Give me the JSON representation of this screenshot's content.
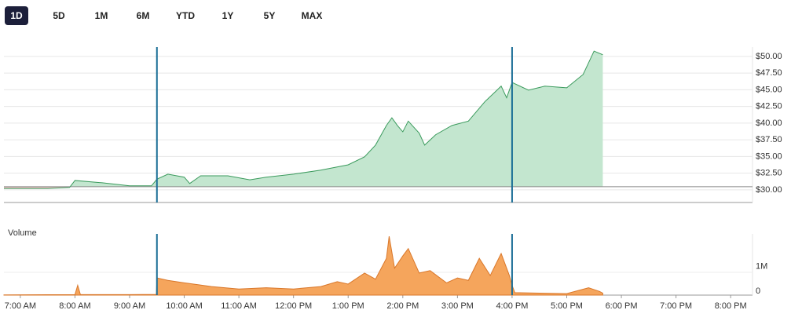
{
  "range_buttons": [
    "1D",
    "5D",
    "1M",
    "6M",
    "YTD",
    "1Y",
    "5Y",
    "MAX"
  ],
  "selected": "1D",
  "chart_data": [
    {
      "type": "area",
      "previous_close": 30.47,
      "session_markers": [
        9.5,
        16
      ],
      "xlim": [
        6.7,
        20.4
      ],
      "ylim": [
        28.1,
        51.4
      ],
      "grid": true,
      "yticks": [
        {
          "value": 30,
          "label": "$30.00"
        },
        {
          "value": 32.5,
          "label": "$32.50"
        },
        {
          "value": 35,
          "label": "$35.00"
        },
        {
          "value": 37.5,
          "label": "$37.50"
        },
        {
          "value": 40,
          "label": "$40.00"
        },
        {
          "value": 42.5,
          "label": "$42.50"
        },
        {
          "value": 45,
          "label": "$45.00"
        },
        {
          "value": 47.5,
          "label": "$47.50"
        },
        {
          "value": 50,
          "label": "$50.00"
        }
      ],
      "series": [
        {
          "color": "#3a9a5c",
          "x": [
            6.7,
            7.5,
            7.9,
            8.0,
            8.5,
            9.0,
            9.4,
            9.5,
            9.7,
            10.0,
            10.1,
            10.3,
            10.8,
            11.2,
            11.5,
            12.0,
            12.5,
            13.0,
            13.3,
            13.5,
            13.7,
            13.8,
            13.9,
            14.0,
            14.1,
            14.3,
            14.4,
            14.6,
            14.9,
            15.2,
            15.5,
            15.8,
            15.9,
            16.0,
            16.3,
            16.6,
            17.0,
            17.3,
            17.5,
            17.66
          ],
          "values": [
            30.2,
            30.2,
            30.35,
            31.4,
            31.05,
            30.6,
            30.6,
            31.6,
            32.35,
            31.9,
            30.95,
            32.1,
            32.1,
            31.5,
            31.9,
            32.35,
            32.95,
            33.75,
            34.95,
            36.7,
            39.65,
            40.8,
            39.65,
            38.7,
            40.3,
            38.5,
            36.7,
            38.25,
            39.65,
            40.3,
            43.2,
            45.55,
            43.8,
            46.1,
            44.95,
            45.55,
            45.3,
            47.3,
            50.8,
            50.25
          ]
        }
      ]
    },
    {
      "type": "area",
      "title": "Volume",
      "xlim": [
        6.7,
        20.4
      ],
      "ylim": [
        0,
        2500000
      ],
      "yticks": [
        0,
        {
          "value": 1000000,
          "label": "1M"
        }
      ],
      "xticks": [
        {
          "value": 7,
          "label": "7:00 AM"
        },
        {
          "value": 8,
          "label": "8:00 AM"
        },
        {
          "value": 9,
          "label": "9:00 AM"
        },
        {
          "value": 10,
          "label": "10:00 AM"
        },
        {
          "value": 11,
          "label": "11:00 AM"
        },
        {
          "value": 12,
          "label": "12:00 PM"
        },
        {
          "value": 13,
          "label": "1:00 PM"
        },
        {
          "value": 14,
          "label": "2:00 PM"
        },
        {
          "value": 15,
          "label": "3:00 PM"
        },
        {
          "value": 16,
          "label": "4:00 PM"
        },
        {
          "value": 17,
          "label": "5:00 PM"
        },
        {
          "value": 18,
          "label": "6:00 PM"
        },
        {
          "value": 19,
          "label": "7:00 PM"
        },
        {
          "value": 20,
          "label": "8:00 PM"
        }
      ],
      "session_markers": [
        9.5,
        16
      ],
      "series": [
        {
          "color": "#f5a55c",
          "x": [
            6.7,
            7.5,
            8.0,
            8.05,
            8.1,
            9.0,
            9.49,
            9.5,
            9.7,
            10.0,
            10.5,
            11.0,
            11.5,
            12.0,
            12.5,
            12.8,
            13.0,
            13.3,
            13.5,
            13.7,
            13.75,
            13.85,
            14.0,
            14.1,
            14.3,
            14.5,
            14.8,
            15.0,
            15.2,
            15.4,
            15.6,
            15.8,
            15.95,
            16.0,
            16.05,
            16.5,
            17.0,
            17.4,
            17.6,
            17.66
          ],
          "values": [
            10000,
            15000,
            20000,
            400000,
            20000,
            20000,
            30000,
            700000,
            600000,
            500000,
            350000,
            250000,
            300000,
            250000,
            350000,
            550000,
            450000,
            900000,
            650000,
            1500000,
            2400000,
            1100000,
            1600000,
            1900000,
            900000,
            1000000,
            500000,
            700000,
            600000,
            1500000,
            800000,
            1700000,
            800000,
            400000,
            100000,
            80000,
            60000,
            300000,
            150000,
            80000
          ]
        }
      ]
    }
  ]
}
